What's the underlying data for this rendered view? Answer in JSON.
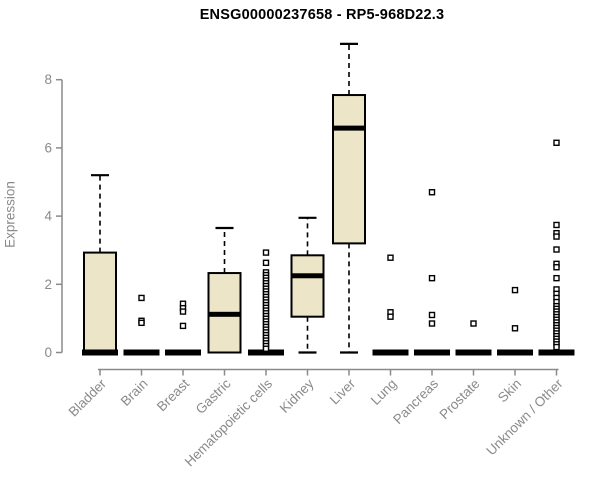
{
  "chart_data": {
    "type": "boxplot",
    "title": "ENSG00000237658 - RP5-968D22.3",
    "ylabel": "Expression",
    "xlabel": "",
    "ylim": [
      0,
      9.3
    ],
    "yticks": [
      0,
      2,
      4,
      6,
      8
    ],
    "grid": false,
    "legend": "none",
    "categories": [
      "Bladder",
      "Brain",
      "Breast",
      "Gastric",
      "Hematopoietic cells",
      "Kidney",
      "Liver",
      "Lung",
      "Pancreas",
      "Prostate",
      "Skin",
      "Unknown / Other"
    ],
    "series": [
      {
        "name": "Bladder",
        "low": 0,
        "q1": 0,
        "median": 0,
        "q3": 2.93,
        "high": 5.2,
        "outliers": []
      },
      {
        "name": "Brain",
        "low": 0,
        "q1": 0,
        "median": 0,
        "q3": 0,
        "high": 0,
        "outliers": [
          1.6,
          0.93,
          0.87
        ]
      },
      {
        "name": "Breast",
        "low": 0,
        "q1": 0,
        "median": 0,
        "q3": 0,
        "high": 0,
        "outliers": [
          1.43,
          1.3,
          1.2,
          0.78
        ]
      },
      {
        "name": "Gastric",
        "low": 0,
        "q1": 0,
        "median": 1.12,
        "q3": 2.33,
        "high": 3.65,
        "outliers": []
      },
      {
        "name": "Hematopoietic cells",
        "low": 0,
        "q1": 0,
        "median": 0,
        "q3": 0,
        "high": 0,
        "outliers": [
          2.93,
          2.63,
          2.35,
          2.27,
          2.19,
          2.11,
          2.03,
          1.95,
          1.87,
          1.79,
          1.71,
          1.63,
          1.55,
          1.47,
          1.39,
          1.31,
          1.23,
          1.15,
          1.07,
          0.99,
          0.91,
          0.83,
          0.75,
          0.67,
          0.59,
          0.51,
          0.43,
          0.35,
          0.27,
          0.19,
          0.11
        ]
      },
      {
        "name": "Kidney",
        "low": 0,
        "q1": 1.05,
        "median": 2.25,
        "q3": 2.85,
        "high": 3.95,
        "outliers": []
      },
      {
        "name": "Liver",
        "low": 0,
        "q1": 3.2,
        "median": 6.58,
        "q3": 7.55,
        "high": 9.05,
        "outliers": []
      },
      {
        "name": "Lung",
        "low": 0,
        "q1": 0,
        "median": 0,
        "q3": 0,
        "high": 0,
        "outliers": [
          2.78,
          1.18,
          1.05
        ]
      },
      {
        "name": "Pancreas",
        "low": 0,
        "q1": 0,
        "median": 0,
        "q3": 0,
        "high": 0,
        "outliers": [
          4.7,
          2.18,
          1.1,
          0.85
        ]
      },
      {
        "name": "Prostate",
        "low": 0,
        "q1": 0,
        "median": 0,
        "q3": 0,
        "high": 0,
        "outliers": [
          0.85
        ]
      },
      {
        "name": "Skin",
        "low": 0,
        "q1": 0,
        "median": 0,
        "q3": 0,
        "high": 0,
        "outliers": [
          1.83,
          0.71
        ]
      },
      {
        "name": "Unknown / Other",
        "low": 0,
        "q1": 0,
        "median": 0,
        "q3": 0,
        "high": 0,
        "outliers": [
          6.15,
          3.74,
          3.5,
          3.4,
          3.02,
          2.6,
          2.5,
          2.18,
          1.85,
          1.72,
          1.6,
          1.48,
          1.36,
          1.28,
          1.2,
          1.12,
          1.04,
          0.96,
          0.88,
          0.8,
          0.72,
          0.64,
          0.56,
          0.48,
          0.4,
          0.32,
          0.24,
          0.16
        ]
      }
    ],
    "colors": {
      "box_fill": "#ece5c8",
      "box_stroke": "#000000",
      "median": "#000000",
      "whisker": "#000000",
      "outlier_stroke": "#000000",
      "outlier_fill": "#ffffff",
      "axis": "#8a8a8a",
      "tick_label": "#8a8a8a",
      "title": "#000000",
      "background": "#ffffff"
    }
  }
}
